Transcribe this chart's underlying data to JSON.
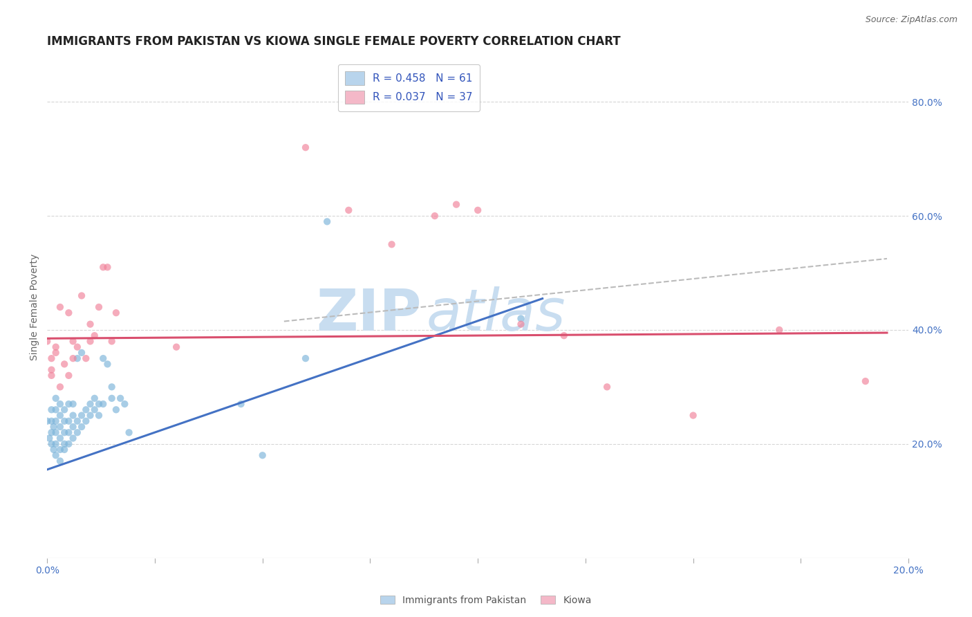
{
  "title": "IMMIGRANTS FROM PAKISTAN VS KIOWA SINGLE FEMALE POVERTY CORRELATION CHART",
  "source": "Source: ZipAtlas.com",
  "ylabel": "Single Female Poverty",
  "right_yticks": [
    "20.0%",
    "40.0%",
    "60.0%",
    "80.0%"
  ],
  "right_ytick_vals": [
    0.2,
    0.4,
    0.6,
    0.8
  ],
  "pakistan_scatter_x": [
    0.0,
    0.0005,
    0.001,
    0.001,
    0.001,
    0.001,
    0.0015,
    0.0015,
    0.002,
    0.002,
    0.002,
    0.002,
    0.002,
    0.002,
    0.003,
    0.003,
    0.003,
    0.003,
    0.003,
    0.003,
    0.004,
    0.004,
    0.004,
    0.004,
    0.004,
    0.005,
    0.005,
    0.005,
    0.005,
    0.006,
    0.006,
    0.006,
    0.006,
    0.007,
    0.007,
    0.007,
    0.008,
    0.008,
    0.008,
    0.009,
    0.009,
    0.01,
    0.01,
    0.011,
    0.011,
    0.012,
    0.012,
    0.013,
    0.013,
    0.014,
    0.015,
    0.015,
    0.016,
    0.017,
    0.018,
    0.019,
    0.045,
    0.05,
    0.06,
    0.065,
    0.11
  ],
  "pakistan_scatter_y": [
    0.24,
    0.21,
    0.2,
    0.22,
    0.24,
    0.26,
    0.19,
    0.23,
    0.18,
    0.2,
    0.22,
    0.24,
    0.26,
    0.28,
    0.17,
    0.19,
    0.21,
    0.23,
    0.25,
    0.27,
    0.19,
    0.2,
    0.22,
    0.24,
    0.26,
    0.2,
    0.22,
    0.24,
    0.27,
    0.21,
    0.23,
    0.25,
    0.27,
    0.22,
    0.24,
    0.35,
    0.23,
    0.25,
    0.36,
    0.24,
    0.26,
    0.25,
    0.27,
    0.26,
    0.28,
    0.25,
    0.27,
    0.27,
    0.35,
    0.34,
    0.28,
    0.3,
    0.26,
    0.28,
    0.27,
    0.22,
    0.27,
    0.18,
    0.35,
    0.59,
    0.42
  ],
  "kiowa_scatter_x": [
    0.0,
    0.001,
    0.001,
    0.001,
    0.002,
    0.002,
    0.003,
    0.003,
    0.004,
    0.005,
    0.005,
    0.006,
    0.006,
    0.007,
    0.008,
    0.009,
    0.01,
    0.01,
    0.011,
    0.012,
    0.013,
    0.014,
    0.015,
    0.016,
    0.03,
    0.06,
    0.07,
    0.08,
    0.09,
    0.095,
    0.1,
    0.11,
    0.12,
    0.13,
    0.15,
    0.17,
    0.19
  ],
  "kiowa_scatter_y": [
    0.38,
    0.33,
    0.35,
    0.32,
    0.36,
    0.37,
    0.3,
    0.44,
    0.34,
    0.32,
    0.43,
    0.38,
    0.35,
    0.37,
    0.46,
    0.35,
    0.38,
    0.41,
    0.39,
    0.44,
    0.51,
    0.51,
    0.38,
    0.43,
    0.37,
    0.72,
    0.61,
    0.55,
    0.6,
    0.62,
    0.61,
    0.41,
    0.39,
    0.3,
    0.25,
    0.4,
    0.31
  ],
  "pakistan_line_x": [
    0.0,
    0.115
  ],
  "pakistan_line_y": [
    0.155,
    0.455
  ],
  "kiowa_line_x": [
    0.0,
    0.195
  ],
  "kiowa_line_y": [
    0.385,
    0.395
  ],
  "extend_line_x": [
    0.055,
    0.195
  ],
  "extend_line_y": [
    0.415,
    0.525
  ],
  "xlim": [
    0.0,
    0.2
  ],
  "ylim": [
    0.0,
    0.88
  ],
  "background_color": "#ffffff",
  "grid_color": "#cccccc",
  "title_fontsize": 12,
  "axis_label_fontsize": 10,
  "tick_fontsize": 10,
  "scatter_size": 55,
  "scatter_alpha": 0.65,
  "pakistan_color": "#7ab3d9",
  "kiowa_color": "#f08098",
  "pakistan_line_color": "#4472c4",
  "kiowa_line_color": "#d94f6e",
  "extend_line_color": "#bbbbbb",
  "watermark_zip": "ZIP",
  "watermark_atlas": "atlas",
  "watermark_color": "#c8ddf0",
  "watermark_fontsize": 60
}
